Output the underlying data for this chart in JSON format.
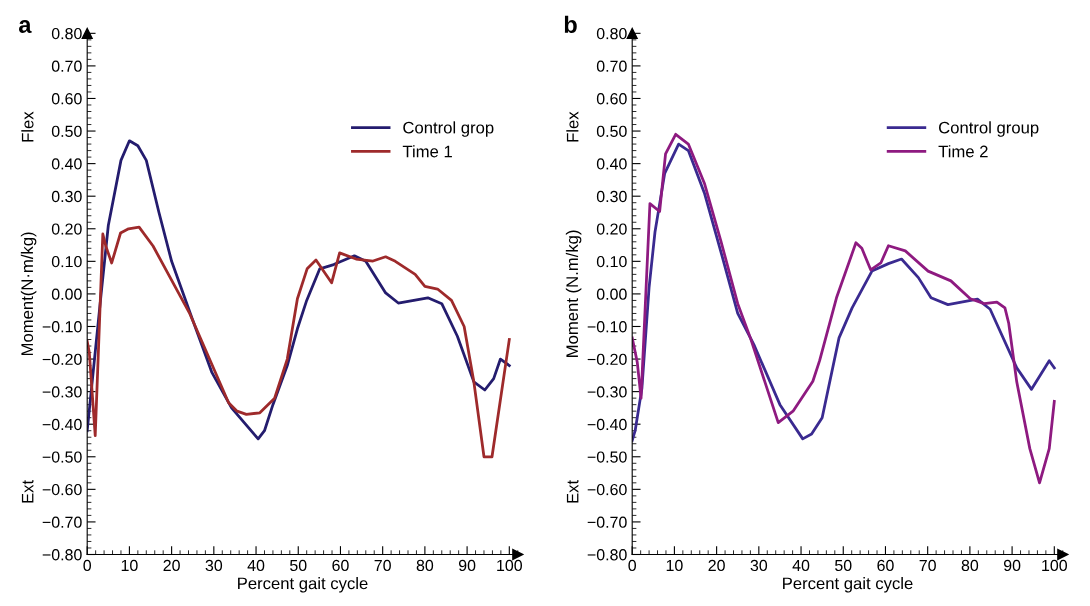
{
  "chart_data": [
    {
      "type": "line",
      "title": "a",
      "xlabel": "Percent gait cycle",
      "ylabel": "Moment(N·m/kg)",
      "annotations": [
        "Flex",
        "Ext"
      ],
      "legend": "top right",
      "grid": false,
      "xlim": [
        0,
        102
      ],
      "ylim": [
        -0.8,
        0.8
      ],
      "xticks": [
        0,
        10,
        20,
        30,
        40,
        50,
        60,
        70,
        80,
        90,
        100
      ],
      "yticks": [
        {
          "value": -0.8,
          "label": "−0.80"
        },
        {
          "value": -0.7,
          "label": "−0.70"
        },
        {
          "value": -0.6,
          "label": "−0.60"
        },
        {
          "value": -0.5,
          "label": "−0.50"
        },
        {
          "value": -0.4,
          "label": "−0.40"
        },
        {
          "value": -0.3,
          "label": "−0.30"
        },
        {
          "value": -0.2,
          "label": "−0.20"
        },
        {
          "value": -0.1,
          "label": "−0.10"
        },
        {
          "value": 0,
          "label": "0.00"
        },
        {
          "value": 0.1,
          "label": "0.10"
        },
        {
          "value": 0.2,
          "label": "0.20"
        },
        {
          "value": 0.3,
          "label": "0.30"
        },
        {
          "value": 0.4,
          "label": "0.40"
        },
        {
          "value": 0.5,
          "label": "0.50"
        },
        {
          "value": 0.6,
          "label": "0.60"
        },
        {
          "value": 0.7,
          "label": "0.70"
        },
        {
          "value": 0.8,
          "label": "0.80"
        }
      ],
      "series": [
        {
          "name": "Control grop",
          "color": "#241c6e",
          "x": [
            0,
            3.3,
            5,
            8,
            10,
            12,
            14,
            17,
            20,
            24.9,
            29.5,
            34.2,
            40.5,
            42,
            44,
            47.4,
            49.8,
            52,
            55.1,
            58.4,
            63.3,
            66,
            70.7,
            73.7,
            80.7,
            84,
            87.7,
            91.6,
            94.2,
            96.3,
            97.9,
            100
          ],
          "values": [
            -0.42,
            0,
            0.21,
            0.41,
            0.47,
            0.455,
            0.41,
            0.25,
            0.1,
            -0.077,
            -0.24,
            -0.35,
            -0.445,
            -0.42,
            -0.34,
            -0.22,
            -0.107,
            -0.02,
            0.077,
            0.09,
            0.117,
            0.1,
            0.003,
            -0.028,
            -0.012,
            -0.03,
            -0.13,
            -0.27,
            -0.295,
            -0.26,
            -0.2,
            -0.22
          ]
        },
        {
          "name": "Time 1",
          "color": "#9e2a2b",
          "x": [
            0,
            0.5,
            1.9,
            3.7,
            4.4,
            5.8,
            7.9,
            9.8,
            12.3,
            15.6,
            24.2,
            33.5,
            35.5,
            37.7,
            40.9,
            44.4,
            47.4,
            49.8,
            52.1,
            54.2,
            57.9,
            59.8,
            63.7,
            67.7,
            70.7,
            73,
            77.7,
            80,
            83,
            86.3,
            89.3,
            91.6,
            94,
            95.9,
            100
          ],
          "values": [
            -0.145,
            -0.18,
            -0.435,
            0.184,
            0.147,
            0.095,
            0.187,
            0.2,
            0.205,
            0.147,
            -0.058,
            -0.334,
            -0.36,
            -0.37,
            -0.365,
            -0.32,
            -0.2,
            -0.015,
            0.077,
            0.104,
            0.034,
            0.126,
            0.107,
            0.101,
            0.114,
            0.1,
            0.06,
            0.023,
            0.015,
            -0.02,
            -0.1,
            -0.27,
            -0.5,
            -0.5,
            -0.14
          ]
        }
      ]
    },
    {
      "type": "line",
      "title": "b",
      "xlabel": "Percent gait cycle",
      "ylabel": "Moment (N.m/kg)",
      "annotations": [
        "Flex",
        "Ext"
      ],
      "legend": "top right",
      "grid": false,
      "xlim": [
        0,
        102
      ],
      "ylim": [
        -0.8,
        0.8
      ],
      "xticks": [
        0,
        10,
        20,
        30,
        40,
        50,
        60,
        70,
        80,
        90,
        100
      ],
      "yticks": [
        {
          "value": -0.8,
          "label": "−0.80"
        },
        {
          "value": -0.7,
          "label": "−0.70"
        },
        {
          "value": -0.6,
          "label": "−0.60"
        },
        {
          "value": -0.5,
          "label": "−0.50"
        },
        {
          "value": -0.4,
          "label": "−0.40"
        },
        {
          "value": -0.3,
          "label": "−0.30"
        },
        {
          "value": -0.2,
          "label": "−0.20"
        },
        {
          "value": -0.1,
          "label": "−0.10"
        },
        {
          "value": 0,
          "label": "0.00"
        },
        {
          "value": 0.1,
          "label": "0.10"
        },
        {
          "value": 0.2,
          "label": "0.20"
        },
        {
          "value": 0.3,
          "label": "0.30"
        },
        {
          "value": 0.4,
          "label": "0.40"
        },
        {
          "value": 0.5,
          "label": "0.50"
        },
        {
          "value": 0.6,
          "label": "0.60"
        },
        {
          "value": 0.7,
          "label": "0.70"
        },
        {
          "value": 0.8,
          "label": "0.80"
        }
      ],
      "series": [
        {
          "name": "Control group",
          "color": "#3a2a90",
          "x": [
            0,
            0.7,
            2.3,
            4,
            5.4,
            7.7,
            11,
            13.3,
            17.1,
            21,
            25,
            28.8,
            35,
            40.4,
            42.5,
            45,
            49,
            52.1,
            56.8,
            60.7,
            63.8,
            67.8,
            70.8,
            74.8,
            81.8,
            84.8,
            91.1,
            94.6,
            98.8,
            100
          ],
          "values": [
            -0.45,
            -0.42,
            -0.29,
            0.02,
            0.19,
            0.37,
            0.46,
            0.44,
            0.31,
            0.13,
            -0.06,
            -0.155,
            -0.34,
            -0.445,
            -0.43,
            -0.38,
            -0.135,
            -0.043,
            0.07,
            0.093,
            0.107,
            0.05,
            -0.012,
            -0.033,
            -0.016,
            -0.047,
            -0.227,
            -0.293,
            -0.205,
            -0.227
          ]
        },
        {
          "name": "Time 2",
          "color": "#8e1a80",
          "x": [
            0,
            1.2,
            2.1,
            4.2,
            6.5,
            7.9,
            10.3,
            13.3,
            17.1,
            21,
            25,
            28,
            34.6,
            38.1,
            42.8,
            44.4,
            48.4,
            53,
            54.4,
            56.5,
            58.9,
            60.7,
            64.7,
            70.1,
            75.5,
            80.1,
            83.4,
            86.4,
            88.3,
            89.2,
            91.1,
            94.2,
            96.5,
            98.8,
            100
          ],
          "values": [
            -0.135,
            -0.21,
            -0.32,
            0.277,
            0.253,
            0.43,
            0.49,
            0.46,
            0.34,
            0.163,
            -0.03,
            -0.135,
            -0.395,
            -0.36,
            -0.268,
            -0.205,
            -0.012,
            0.157,
            0.14,
            0.074,
            0.095,
            0.148,
            0.132,
            0.07,
            0.04,
            -0.015,
            -0.03,
            -0.025,
            -0.043,
            -0.09,
            -0.27,
            -0.475,
            -0.58,
            -0.475,
            -0.33
          ]
        }
      ]
    }
  ]
}
